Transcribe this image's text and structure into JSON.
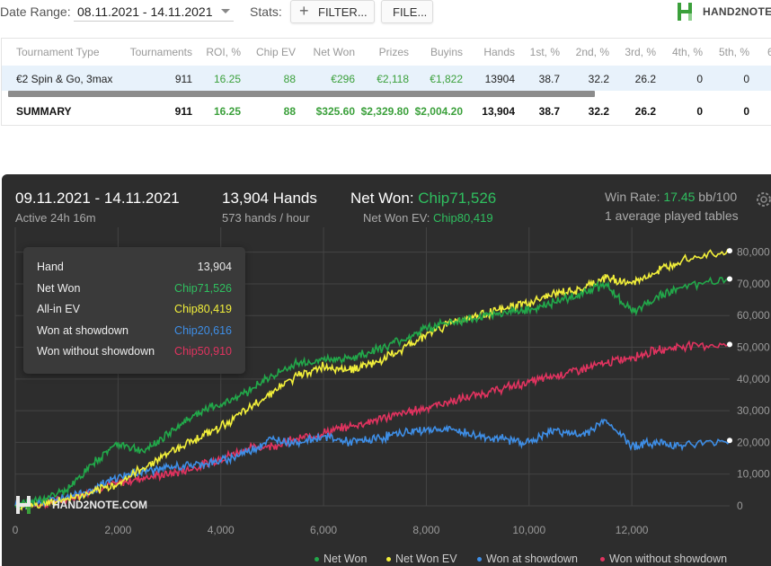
{
  "toolbar": {
    "date_range_label": "Date Range:",
    "date_range_value": "08.11.2021 - 14.11.2021",
    "stats_label": "Stats:",
    "filter_label": "FILTER...",
    "file_label": "FILE...",
    "brand_name": "HAND2NOTE.COM"
  },
  "table": {
    "columns": [
      "Tournament Type",
      "Tournaments",
      "ROI, %",
      "Chip EV",
      "Net Won",
      "Prizes",
      "Buyins",
      "Hands",
      "1st, %",
      "2nd, %",
      "3rd, %",
      "4th, %",
      "5th, %",
      "6"
    ],
    "rows": [
      [
        "€2 Spin & Go, 3max",
        "911",
        "16.25",
        "88",
        "€296",
        "€2,118",
        "€1,822",
        "13904",
        "38.7",
        "32.2",
        "26.2",
        "0",
        "0",
        ""
      ]
    ],
    "summary": [
      "SUMMARY",
      "911",
      "16.25",
      "88",
      "$325.60",
      "$2,329.80",
      "$2,004.20",
      "13,904",
      "38.7",
      "32.2",
      "26.2",
      "0",
      "0",
      ""
    ]
  },
  "graph": {
    "date_range": "09.11.2021 - 14.11.2021",
    "active_time": "Active 24h 16m",
    "hands_total": "13,904 Hands",
    "hands_rate": "573 hands / hour",
    "net_won_label": "Net Won: ",
    "net_won_value": "Chip71,526",
    "net_won_ev_label": "Net Won  EV: ",
    "net_won_ev_value": "Chip80,419",
    "win_rate_label": "Win Rate: ",
    "win_rate_value": "17.45",
    "win_rate_unit": " bb/100",
    "avg_tables": "1 average played tables",
    "watermark": "HAND2NOTE.COM"
  },
  "tooltip": {
    "rows": [
      {
        "key": "Hand",
        "value": "13,904",
        "color": "#e6e6e6"
      },
      {
        "key": "Net Won",
        "value": "Chip71,526",
        "color": "#2fbf5f"
      },
      {
        "key": "All-in EV",
        "value": "Chip80,419",
        "color": "#f2ef3a"
      },
      {
        "key": "Won at showdown",
        "value": "Chip20,616",
        "color": "#3e8ee6"
      },
      {
        "key": "Won without showdown",
        "value": "Chip50,910",
        "color": "#e0335f"
      }
    ]
  },
  "colors": {
    "net_won": "#22a84a",
    "net_won_ev": "#f2ef3a",
    "showdown": "#3e8ee6",
    "non_showdown": "#e0335f"
  },
  "chart_data": {
    "type": "line",
    "xlim": [
      0,
      13904
    ],
    "ylim": [
      0,
      85000
    ],
    "x_ticks": [
      0,
      2000,
      4000,
      6000,
      8000,
      10000,
      12000
    ],
    "x_tick_labels": [
      "0",
      "2,000",
      "4,000",
      "6,000",
      "8,000",
      "10,000",
      "12,000"
    ],
    "y_ticks": [
      0,
      10000,
      20000,
      30000,
      40000,
      50000,
      60000,
      70000,
      80000
    ],
    "y_tick_labels": [
      "0",
      "10,000",
      "20,000",
      "30,000",
      "40,000",
      "50,000",
      "60,000",
      "70,000",
      "80,000"
    ],
    "grid": true,
    "legend_position": "bottom-right",
    "x": [
      0,
      500,
      1000,
      1500,
      2000,
      2500,
      3000,
      3500,
      4000,
      4500,
      5000,
      5500,
      6000,
      6500,
      7000,
      7500,
      8000,
      8500,
      9000,
      9500,
      10000,
      10500,
      11000,
      11500,
      12000,
      12500,
      13000,
      13904
    ],
    "series": [
      {
        "name": "Net Won",
        "color": "#22a84a",
        "values": [
          0,
          2000,
          5000,
          13000,
          20000,
          17000,
          23000,
          29000,
          32000,
          36000,
          41000,
          45000,
          46000,
          46500,
          49000,
          52000,
          56000,
          58000,
          59000,
          61000,
          62000,
          64000,
          67000,
          70000,
          61000,
          66000,
          69000,
          71526
        ]
      },
      {
        "name": "Net Won  EV",
        "color": "#f2ef3a",
        "values": [
          0,
          500,
          2000,
          4000,
          7000,
          12000,
          17000,
          21000,
          25000,
          30000,
          36000,
          41000,
          44000,
          43000,
          45000,
          49000,
          54000,
          58000,
          60000,
          62000,
          64000,
          67000,
          68000,
          72000,
          70000,
          74000,
          78000,
          80419
        ]
      },
      {
        "name": "Won at showdown",
        "color": "#3e8ee6",
        "values": [
          0,
          800,
          3000,
          5000,
          9000,
          11000,
          12000,
          13000,
          14000,
          17000,
          21000,
          20000,
          22000,
          20000,
          21000,
          23000,
          24000,
          24000,
          22000,
          21000,
          20000,
          24000,
          22000,
          27000,
          19000,
          20000,
          19000,
          20616
        ]
      },
      {
        "name": "Won without showdown",
        "color": "#e0335f",
        "values": [
          0,
          400,
          2000,
          5000,
          7000,
          9000,
          10000,
          12000,
          15000,
          18000,
          19000,
          21000,
          23000,
          25000,
          27000,
          29000,
          31000,
          33000,
          35000,
          37000,
          39000,
          41000,
          43000,
          45000,
          47000,
          49000,
          50500,
          50910
        ]
      }
    ]
  }
}
